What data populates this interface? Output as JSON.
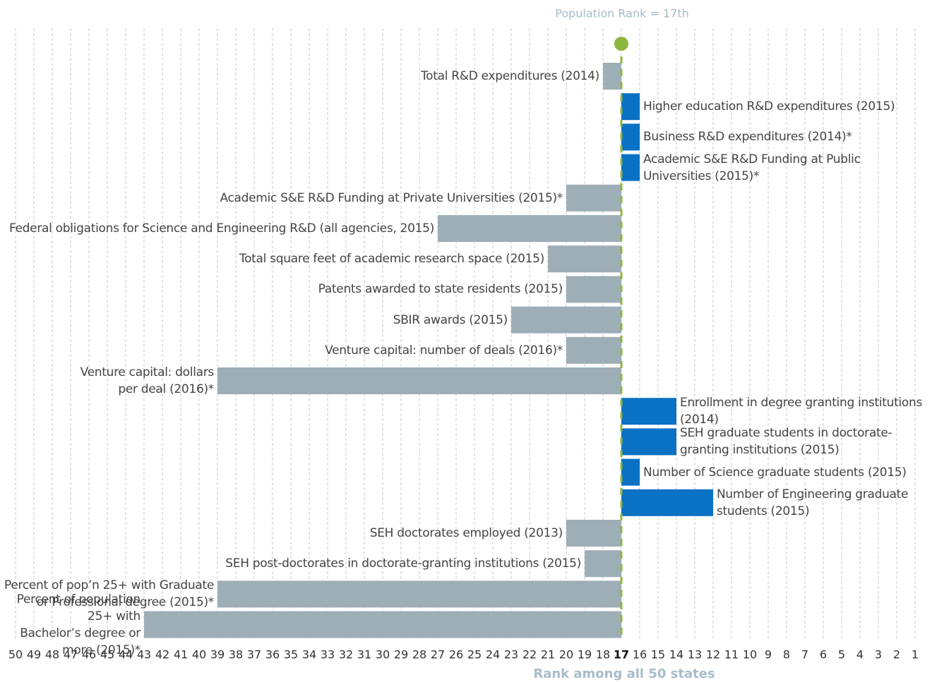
{
  "chart_data": {
    "type": "bar",
    "orientation": "horizontal",
    "reference": 17,
    "reference_label": "Population Rank = 17th",
    "reference_color": "#8cb63c",
    "worse_color": "#9eaeb7",
    "better_color": "#0a72c4",
    "x_label": "Rank among all 50 states",
    "grid": true,
    "xlim": [
      50,
      1
    ],
    "xticks": [
      50,
      49,
      48,
      47,
      46,
      45,
      44,
      43,
      42,
      41,
      40,
      39,
      38,
      37,
      36,
      35,
      34,
      33,
      32,
      31,
      30,
      29,
      28,
      27,
      26,
      25,
      24,
      23,
      22,
      21,
      20,
      19,
      18,
      17,
      16,
      15,
      14,
      13,
      12,
      11,
      10,
      9,
      8,
      7,
      6,
      5,
      4,
      3,
      2,
      1
    ],
    "categories": [
      "Total R&D expenditures (2014)",
      "Higher education R&D expenditures (2015)",
      "Business R&D expenditures (2014)*",
      "Academic S&E R&D Funding at Public\nUniversities (2015)*",
      "Academic S&E R&D Funding at Private Universities (2015)*",
      "Federal obligations for Science and Engineering R&D (all agencies, 2015)",
      "Total square feet of academic research space (2015)",
      "Patents awarded to state residents (2015)",
      "SBIR awards (2015)",
      "Venture capital: number of deals (2016)*",
      "Venture capital: dollars\nper deal (2016)*",
      "Enrollment in degree granting institutions\n(2014)",
      "SEH graduate students in doctorate-\ngranting institutions (2015)",
      "Number of Science graduate students (2015)",
      "Number of Engineering graduate\nstudents (2015)",
      "SEH doctorates employed (2013)",
      "SEH post-doctorates in doctorate-granting institutions (2015)",
      "Percent of pop’n 25+ with Graduate\nor Professional degree (2015)*",
      "Percent of population 25+ with\nBachelor’s degree or more (2015)*"
    ],
    "values": [
      18,
      16,
      16,
      16,
      20,
      27,
      21,
      20,
      23,
      20,
      39,
      14,
      14,
      16,
      12,
      20,
      19,
      39,
      43
    ]
  }
}
